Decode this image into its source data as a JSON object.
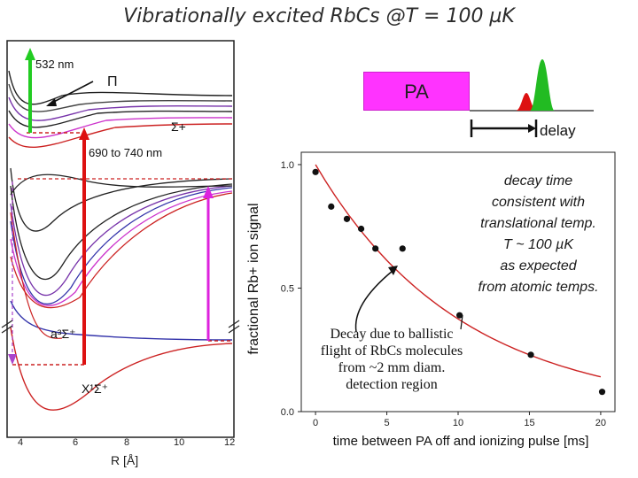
{
  "title": "Vibrationally excited RbCs @T = 100 µK",
  "timing": {
    "pa_label": "PA",
    "delay_label": "delay"
  },
  "potential_diagram": {
    "laser_532": "532 nm",
    "laser_690": "690 to 740 nm",
    "state_pi": "Π",
    "state_sigma_plus": "Σ+",
    "state_a": "a³Σ⁺",
    "state_x": "X¹Σ⁺",
    "x_ticks": [
      "4",
      "6",
      "8",
      "10",
      "12"
    ],
    "x_axis_label": "R [Å]"
  },
  "annotations": {
    "decay_lines": [
      "decay time",
      "consistent with",
      "translational temp.",
      "T ~ 100 µK",
      "as expected",
      "from atomic temps."
    ],
    "ballistic_lines": [
      "Decay due to ballistic",
      "flight of RbCs molecules",
      "from ~2 mm diam.",
      "detection region"
    ]
  },
  "chart_data": {
    "type": "scatter",
    "title": "",
    "xlabel": "time between PA off and ionizing pulse [ms]",
    "ylabel": "fractional Rb+ ion signal",
    "xlim": [
      -1,
      21
    ],
    "ylim": [
      0,
      1.05
    ],
    "x_ticks": [
      0,
      5,
      10,
      15,
      20
    ],
    "y_ticks": [
      0.0,
      0.5,
      1.0
    ],
    "x_tick_labels": [
      "0",
      "5",
      "10",
      "15",
      "20"
    ],
    "y_tick_labels": [
      "0.0",
      "0.5",
      "1.0"
    ],
    "series": [
      {
        "name": "data",
        "x": [
          0,
          1.1,
          2.2,
          3.2,
          4.2,
          6.1,
          10.1,
          15.1,
          20.1
        ],
        "y": [
          0.97,
          0.83,
          0.78,
          0.74,
          0.66,
          0.66,
          0.39,
          0.23,
          0.08
        ]
      },
      {
        "name": "fit",
        "decay_tau_ms": 10.2,
        "amplitude": 1.0
      }
    ]
  },
  "colors": {
    "pa": "#ff33ff",
    "fit": "#cc2222",
    "laser_green": "#22cc22",
    "laser_red": "#dd1111",
    "magenta": "#dd22dd"
  }
}
